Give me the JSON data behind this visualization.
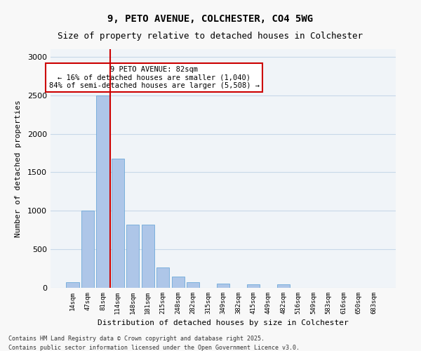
{
  "title1": "9, PETO AVENUE, COLCHESTER, CO4 5WG",
  "title2": "Size of property relative to detached houses in Colchester",
  "xlabel": "Distribution of detached houses by size in Colchester",
  "ylabel": "Number of detached properties",
  "categories": [
    "14sqm",
    "47sqm",
    "81sqm",
    "114sqm",
    "148sqm",
    "181sqm",
    "215sqm",
    "248sqm",
    "282sqm",
    "315sqm",
    "349sqm",
    "382sqm",
    "415sqm",
    "449sqm",
    "482sqm",
    "516sqm",
    "549sqm",
    "583sqm",
    "616sqm",
    "650sqm",
    "683sqm"
  ],
  "values": [
    75,
    1000,
    2500,
    1680,
    820,
    820,
    265,
    150,
    75,
    0,
    55,
    0,
    50,
    0,
    50,
    0,
    0,
    0,
    0,
    0,
    0
  ],
  "bar_color": "#aec6e8",
  "bar_edge_color": "#5a9fd4",
  "red_line_x": 2,
  "annotation_text": "9 PETO AVENUE: 82sqm\n← 16% of detached houses are smaller (1,040)\n84% of semi-detached houses are larger (5,508) →",
  "annotation_box_color": "#ffffff",
  "annotation_box_edge": "#cc0000",
  "red_line_color": "#cc0000",
  "grid_color": "#c8d8e8",
  "background_color": "#f0f4f8",
  "footer1": "Contains HM Land Registry data © Crown copyright and database right 2025.",
  "footer2": "Contains public sector information licensed under the Open Government Licence v3.0.",
  "ylim": [
    0,
    3100
  ],
  "yticks": [
    0,
    500,
    1000,
    1500,
    2000,
    2500,
    3000
  ]
}
